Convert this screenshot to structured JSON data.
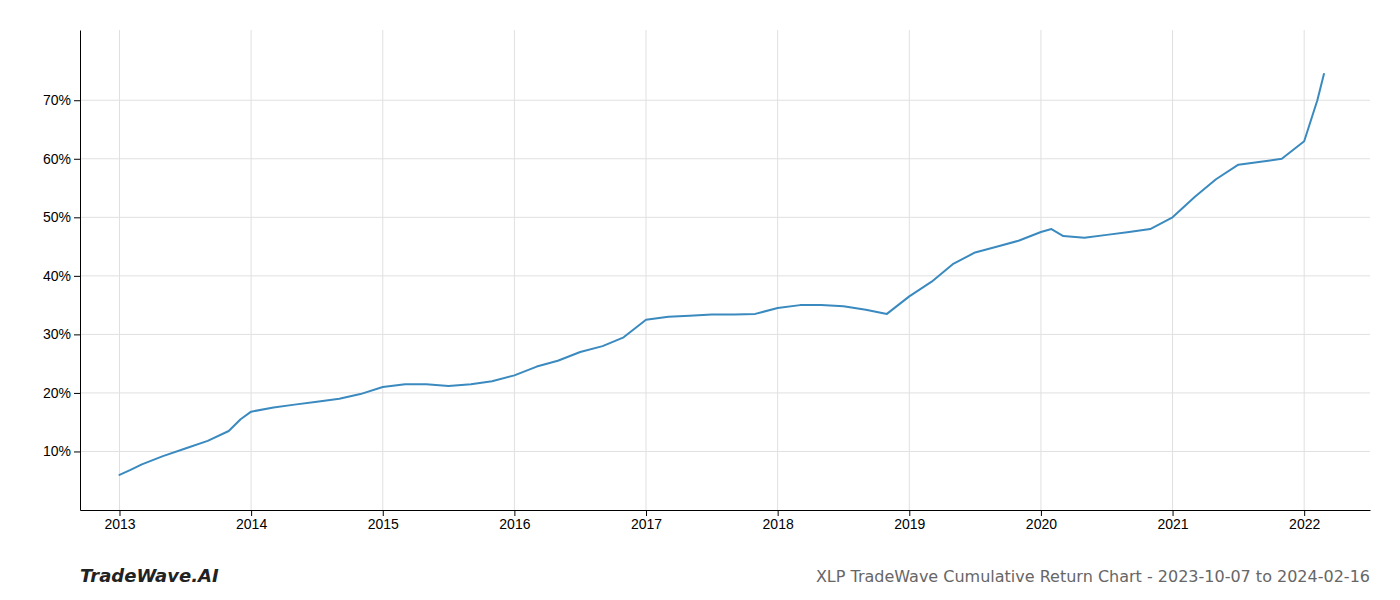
{
  "chart_data": {
    "type": "line",
    "title": "XLP TradeWave Cumulative Return Chart - 2023-10-07 to 2024-02-16",
    "annotations": [
      "TradeWave.AI"
    ],
    "color": "#3a8abf",
    "grid": true,
    "x": [
      2013.0,
      2013.08,
      2013.17,
      2013.33,
      2013.5,
      2013.67,
      2013.83,
      2013.92,
      2014.0,
      2014.17,
      2014.33,
      2014.5,
      2014.67,
      2014.83,
      2015.0,
      2015.17,
      2015.33,
      2015.5,
      2015.67,
      2015.83,
      2016.0,
      2016.17,
      2016.33,
      2016.5,
      2016.67,
      2016.83,
      2017.0,
      2017.17,
      2017.33,
      2017.5,
      2017.67,
      2017.83,
      2018.0,
      2018.17,
      2018.33,
      2018.5,
      2018.67,
      2018.83,
      2019.0,
      2019.17,
      2019.33,
      2019.5,
      2019.67,
      2019.83,
      2020.0,
      2020.08,
      2020.17,
      2020.33,
      2020.5,
      2020.67,
      2020.83,
      2021.0,
      2021.17,
      2021.33,
      2021.5,
      2021.67,
      2021.83,
      2022.0,
      2022.1,
      2022.15
    ],
    "values": [
      6.0,
      6.8,
      7.8,
      9.2,
      10.5,
      11.8,
      13.5,
      15.5,
      16.8,
      17.5,
      18.0,
      18.5,
      19.0,
      19.8,
      21.0,
      21.5,
      21.5,
      21.2,
      21.5,
      22.0,
      23.0,
      24.5,
      25.5,
      27.0,
      28.0,
      29.5,
      32.5,
      33.0,
      33.2,
      33.4,
      33.4,
      33.5,
      34.5,
      35.0,
      35.0,
      34.8,
      34.2,
      33.5,
      36.5,
      39.0,
      42.0,
      44.0,
      45.0,
      46.0,
      47.5,
      48.0,
      46.8,
      46.5,
      47.0,
      47.5,
      48.0,
      50.0,
      53.5,
      56.5,
      59.0,
      59.5,
      60.0,
      63.0,
      70.0,
      74.5
    ],
    "xlim": [
      2012.7,
      2022.5
    ],
    "ylim": [
      0,
      82
    ],
    "xticks": [
      2013,
      2014,
      2015,
      2016,
      2017,
      2018,
      2019,
      2020,
      2021,
      2022
    ],
    "yticks": [
      {
        "value": 10,
        "label": "10%"
      },
      {
        "value": 20,
        "label": "20%"
      },
      {
        "value": 30,
        "label": "30%"
      },
      {
        "value": 40,
        "label": "40%"
      },
      {
        "value": 50,
        "label": "50%"
      },
      {
        "value": 60,
        "label": "60%"
      },
      {
        "value": 70,
        "label": "70%"
      }
    ]
  }
}
